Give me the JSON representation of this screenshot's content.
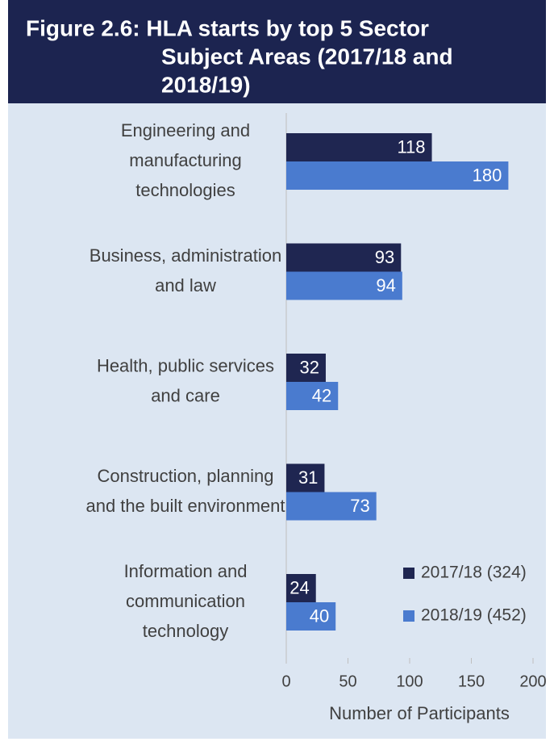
{
  "chart_data": {
    "type": "bar",
    "orientation": "horizontal",
    "title": [
      "Figure 2.6: HLA starts by top 5 Sector",
      "Subject Areas (2017/18 and",
      "2018/19)"
    ],
    "categories": [
      [
        "Engineering and",
        "manufacturing",
        "technologies"
      ],
      [
        "Business, administration",
        "and law"
      ],
      [
        "Health, public services",
        "and care"
      ],
      [
        "Construction, planning",
        "and the built environment"
      ],
      [
        "Information and",
        "communication",
        "technology"
      ]
    ],
    "series": [
      {
        "name": "2017/18 (324)",
        "color": "#1f2651",
        "values": [
          118,
          93,
          32,
          31,
          24
        ]
      },
      {
        "name": "2018/19 (452)",
        "color": "#4a7bcf",
        "values": [
          180,
          94,
          42,
          73,
          40
        ]
      }
    ],
    "xlim": [
      0,
      200
    ],
    "xticks": [
      0,
      50,
      100,
      150,
      200
    ],
    "xlabel": "Number of Participants",
    "legend": "lower right"
  }
}
